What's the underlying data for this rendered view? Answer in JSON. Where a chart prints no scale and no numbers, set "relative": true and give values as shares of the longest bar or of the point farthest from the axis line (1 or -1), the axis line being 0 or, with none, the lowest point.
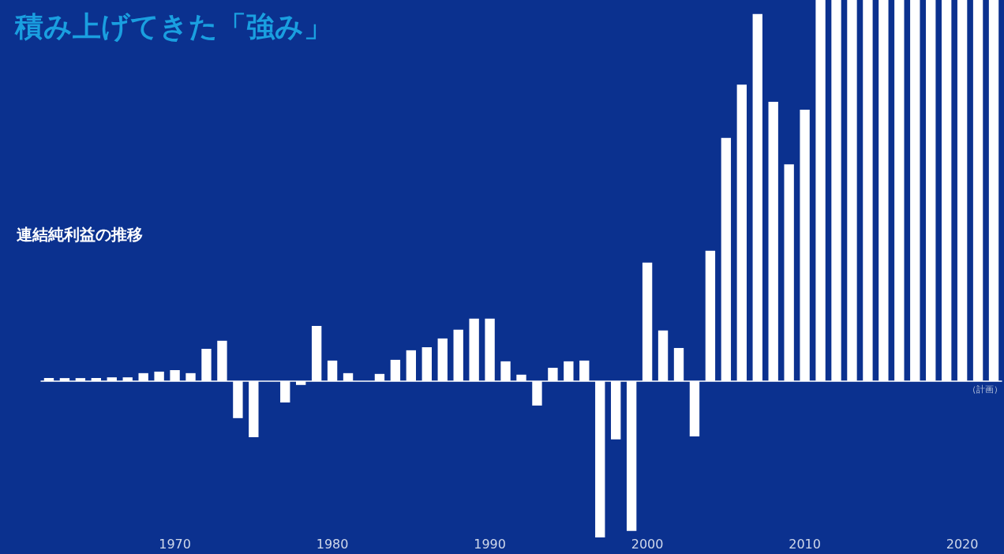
{
  "chart_data": {
    "type": "bar",
    "title": "積み上げてきた「強み」",
    "subtitle": "連結純利益の推移",
    "annotations": [
      "（計画）"
    ],
    "relative": true,
    "color": "#ffffff",
    "categories": [
      null,
      null,
      null,
      null,
      null,
      null,
      null,
      null,
      "1970",
      null,
      null,
      null,
      null,
      null,
      null,
      null,
      null,
      null,
      "1980",
      null,
      null,
      null,
      null,
      null,
      null,
      null,
      null,
      null,
      "1990",
      null,
      null,
      null,
      null,
      null,
      null,
      null,
      null,
      null,
      "2000",
      null,
      null,
      null,
      null,
      null,
      null,
      null,
      null,
      null,
      "2010",
      null,
      null,
      null,
      null,
      null,
      null,
      null,
      null,
      null,
      "2020",
      null,
      null
    ],
    "values": [
      0.008,
      0.008,
      0.008,
      0.008,
      0.01,
      0.01,
      0.021,
      0.025,
      0.029,
      0.021,
      0.085,
      0.106,
      -0.097,
      -0.147,
      0,
      -0.056,
      -0.01,
      0.145,
      0.054,
      0.021,
      0,
      0.019,
      0.056,
      0.081,
      0.089,
      0.112,
      0.135,
      0.164,
      0.164,
      0.052,
      0.017,
      -0.064,
      0.035,
      0.052,
      0.054,
      -0.41,
      -0.153,
      -0.393,
      0.311,
      0.133,
      0.087,
      -0.145,
      0.342,
      0.638,
      0.778,
      0.963,
      0.733,
      0.569,
      0.712,
      1,
      1,
      1,
      1,
      1,
      1,
      1,
      1,
      1,
      1,
      1,
      1
    ]
  }
}
